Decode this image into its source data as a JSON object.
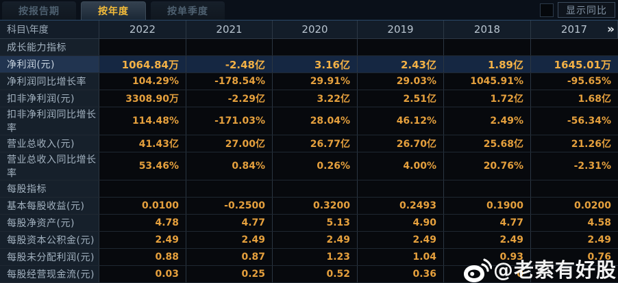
{
  "tabs": [
    {
      "label": "按报告期",
      "active": false
    },
    {
      "label": "按年度",
      "active": true
    },
    {
      "label": "按单季度",
      "active": false
    }
  ],
  "controls": {
    "show_yoy_label": "显示同比",
    "checkbox_checked": false
  },
  "table": {
    "corner_label": "科目\\年度",
    "years": [
      "2022",
      "2021",
      "2020",
      "2019",
      "2018",
      "2017"
    ],
    "more_years_icon": "»",
    "rows": [
      {
        "type": "section",
        "label": "成长能力指标",
        "values": [
          "",
          "",
          "",
          "",
          "",
          ""
        ]
      },
      {
        "type": "highlight",
        "label": "净利润(元)",
        "values": [
          "1064.84万",
          "-2.48亿",
          "3.16亿",
          "2.43亿",
          "1.89亿",
          "1645.01万"
        ]
      },
      {
        "type": "normal",
        "label": "净利润同比增长率",
        "values": [
          "104.29%",
          "-178.54%",
          "29.91%",
          "29.03%",
          "1045.91%",
          "-95.65%"
        ]
      },
      {
        "type": "normal",
        "label": "扣非净利润(元)",
        "values": [
          "3308.90万",
          "-2.29亿",
          "3.22亿",
          "2.51亿",
          "1.72亿",
          "1.68亿"
        ]
      },
      {
        "type": "normal",
        "label": "扣非净利润同比增长率",
        "values": [
          "114.48%",
          "-171.03%",
          "28.04%",
          "46.12%",
          "2.49%",
          "-56.34%"
        ]
      },
      {
        "type": "normal",
        "label": "营业总收入(元)",
        "values": [
          "41.43亿",
          "27.00亿",
          "26.77亿",
          "26.70亿",
          "25.68亿",
          "21.26亿"
        ]
      },
      {
        "type": "normal",
        "label": "营业总收入同比增长率",
        "values": [
          "53.46%",
          "0.84%",
          "0.26%",
          "4.00%",
          "20.76%",
          "-2.31%"
        ]
      },
      {
        "type": "section",
        "label": "每股指标",
        "values": [
          "",
          "",
          "",
          "",
          "",
          ""
        ]
      },
      {
        "type": "normal",
        "label": "基本每股收益(元)",
        "values": [
          "0.0100",
          "-0.2500",
          "0.3200",
          "0.2493",
          "0.1900",
          "0.0200"
        ]
      },
      {
        "type": "normal",
        "label": "每股净资产(元)",
        "values": [
          "4.78",
          "4.77",
          "5.13",
          "4.90",
          "4.77",
          "4.58"
        ]
      },
      {
        "type": "normal",
        "label": "每股资本公积金(元)",
        "values": [
          "2.49",
          "2.49",
          "2.49",
          "2.49",
          "2.49",
          "2.49"
        ]
      },
      {
        "type": "normal",
        "label": "每股未分配利润(元)",
        "values": [
          "0.88",
          "0.87",
          "1.23",
          "1.04",
          "0.93",
          "0.76"
        ]
      },
      {
        "type": "normal",
        "label": "每股经营现金流(元)",
        "values": [
          "0.03",
          "0.25",
          "0.52",
          "0.36",
          "0",
          ""
        ]
      }
    ]
  },
  "watermark": {
    "icon": "weibo-icon",
    "text": "@老索有好股"
  },
  "colors": {
    "accent_gold": "#f4bc3a",
    "value_orange": "#e5a03d",
    "highlight_value": "#f3b146",
    "highlight_row_bg": "#152742",
    "label_column_bg": "#16202b",
    "header_bg": "#131d29",
    "watermark": "#ffffff"
  }
}
